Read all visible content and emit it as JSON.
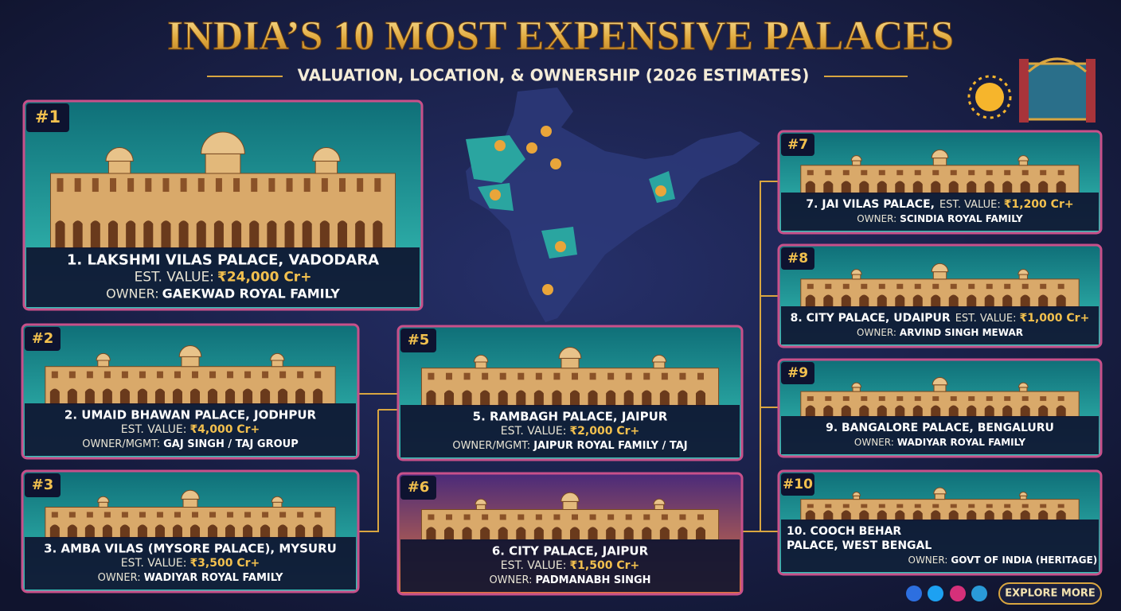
{
  "header": {
    "title": "INDIA’S 10 MOST EXPENSIVE PALACES",
    "subtitle": "VALUATION, LOCATION, & OWNERSHIP (2026 ESTIMATES)"
  },
  "cards": [
    {
      "rank": "#1",
      "name": "1. LAKSHMI VILAS PALACE, VADODARA",
      "value_label": "EST. VALUE:",
      "value": "₹24,000 Cr+",
      "owner_label": "OWNER:",
      "owner": "GAEKWAD ROYAL FAMILY"
    },
    {
      "rank": "#2",
      "name": "2. UMAID BHAWAN PALACE, JODHPUR",
      "value_label": "EST. VALUE:",
      "value": "₹4,000 Cr+",
      "owner_label": "OWNER/MGMT:",
      "owner": "GAJ SINGH / TAJ GROUP"
    },
    {
      "rank": "#3",
      "name": "3. AMBA VILAS (MYSORE PALACE), MYSURU",
      "value_label": "EST. VALUE:",
      "value": "₹3,500 Cr+",
      "owner_label": "OWNER:",
      "owner": "WADIYAR ROYAL FAMILY"
    },
    {
      "rank": "#5",
      "name": "5. RAMBAGH PALACE, JAIPUR",
      "value_label": "EST. VALUE:",
      "value": "₹2,000 Cr+",
      "owner_label": "OWNER/MGMT:",
      "owner": "JAIPUR ROYAL FAMILY / TAJ"
    },
    {
      "rank": "#6",
      "name": "6. CITY PALACE, JAIPUR",
      "value_label": "EST. VALUE:",
      "value": "₹1,500 Cr+",
      "owner_label": "OWNER:",
      "owner": "PADMANABH SINGH"
    },
    {
      "rank": "#7",
      "name": "7. JAI VILAS PALACE,",
      "value_label": "EST. VALUE:",
      "value": "₹1,200 Cr+",
      "owner_label": "OWNER:",
      "owner": "SCINDIA ROYAL FAMILY"
    },
    {
      "rank": "#8",
      "name": "8. CITY PALACE, UDAIPUR",
      "value_label": "EST. VALUE:",
      "value": "₹1,000 Cr+",
      "owner_label": "OWNER:",
      "owner": "ARVIND SINGH MEWAR"
    },
    {
      "rank": "#9",
      "name": "9. BANGALORE PALACE, BENGALURU",
      "owner_label": "OWNER:",
      "owner": "WADIYAR ROYAL FAMILY"
    },
    {
      "rank": "#10",
      "name": [
        "10. COOCH BEHAR",
        "PALACE, WEST BENGAL"
      ],
      "owner_label": "OWNER:",
      "owner": "GOVT OF INDIA (HERITAGE)"
    }
  ],
  "footer": {
    "button": "EXPLORE MORE"
  }
}
